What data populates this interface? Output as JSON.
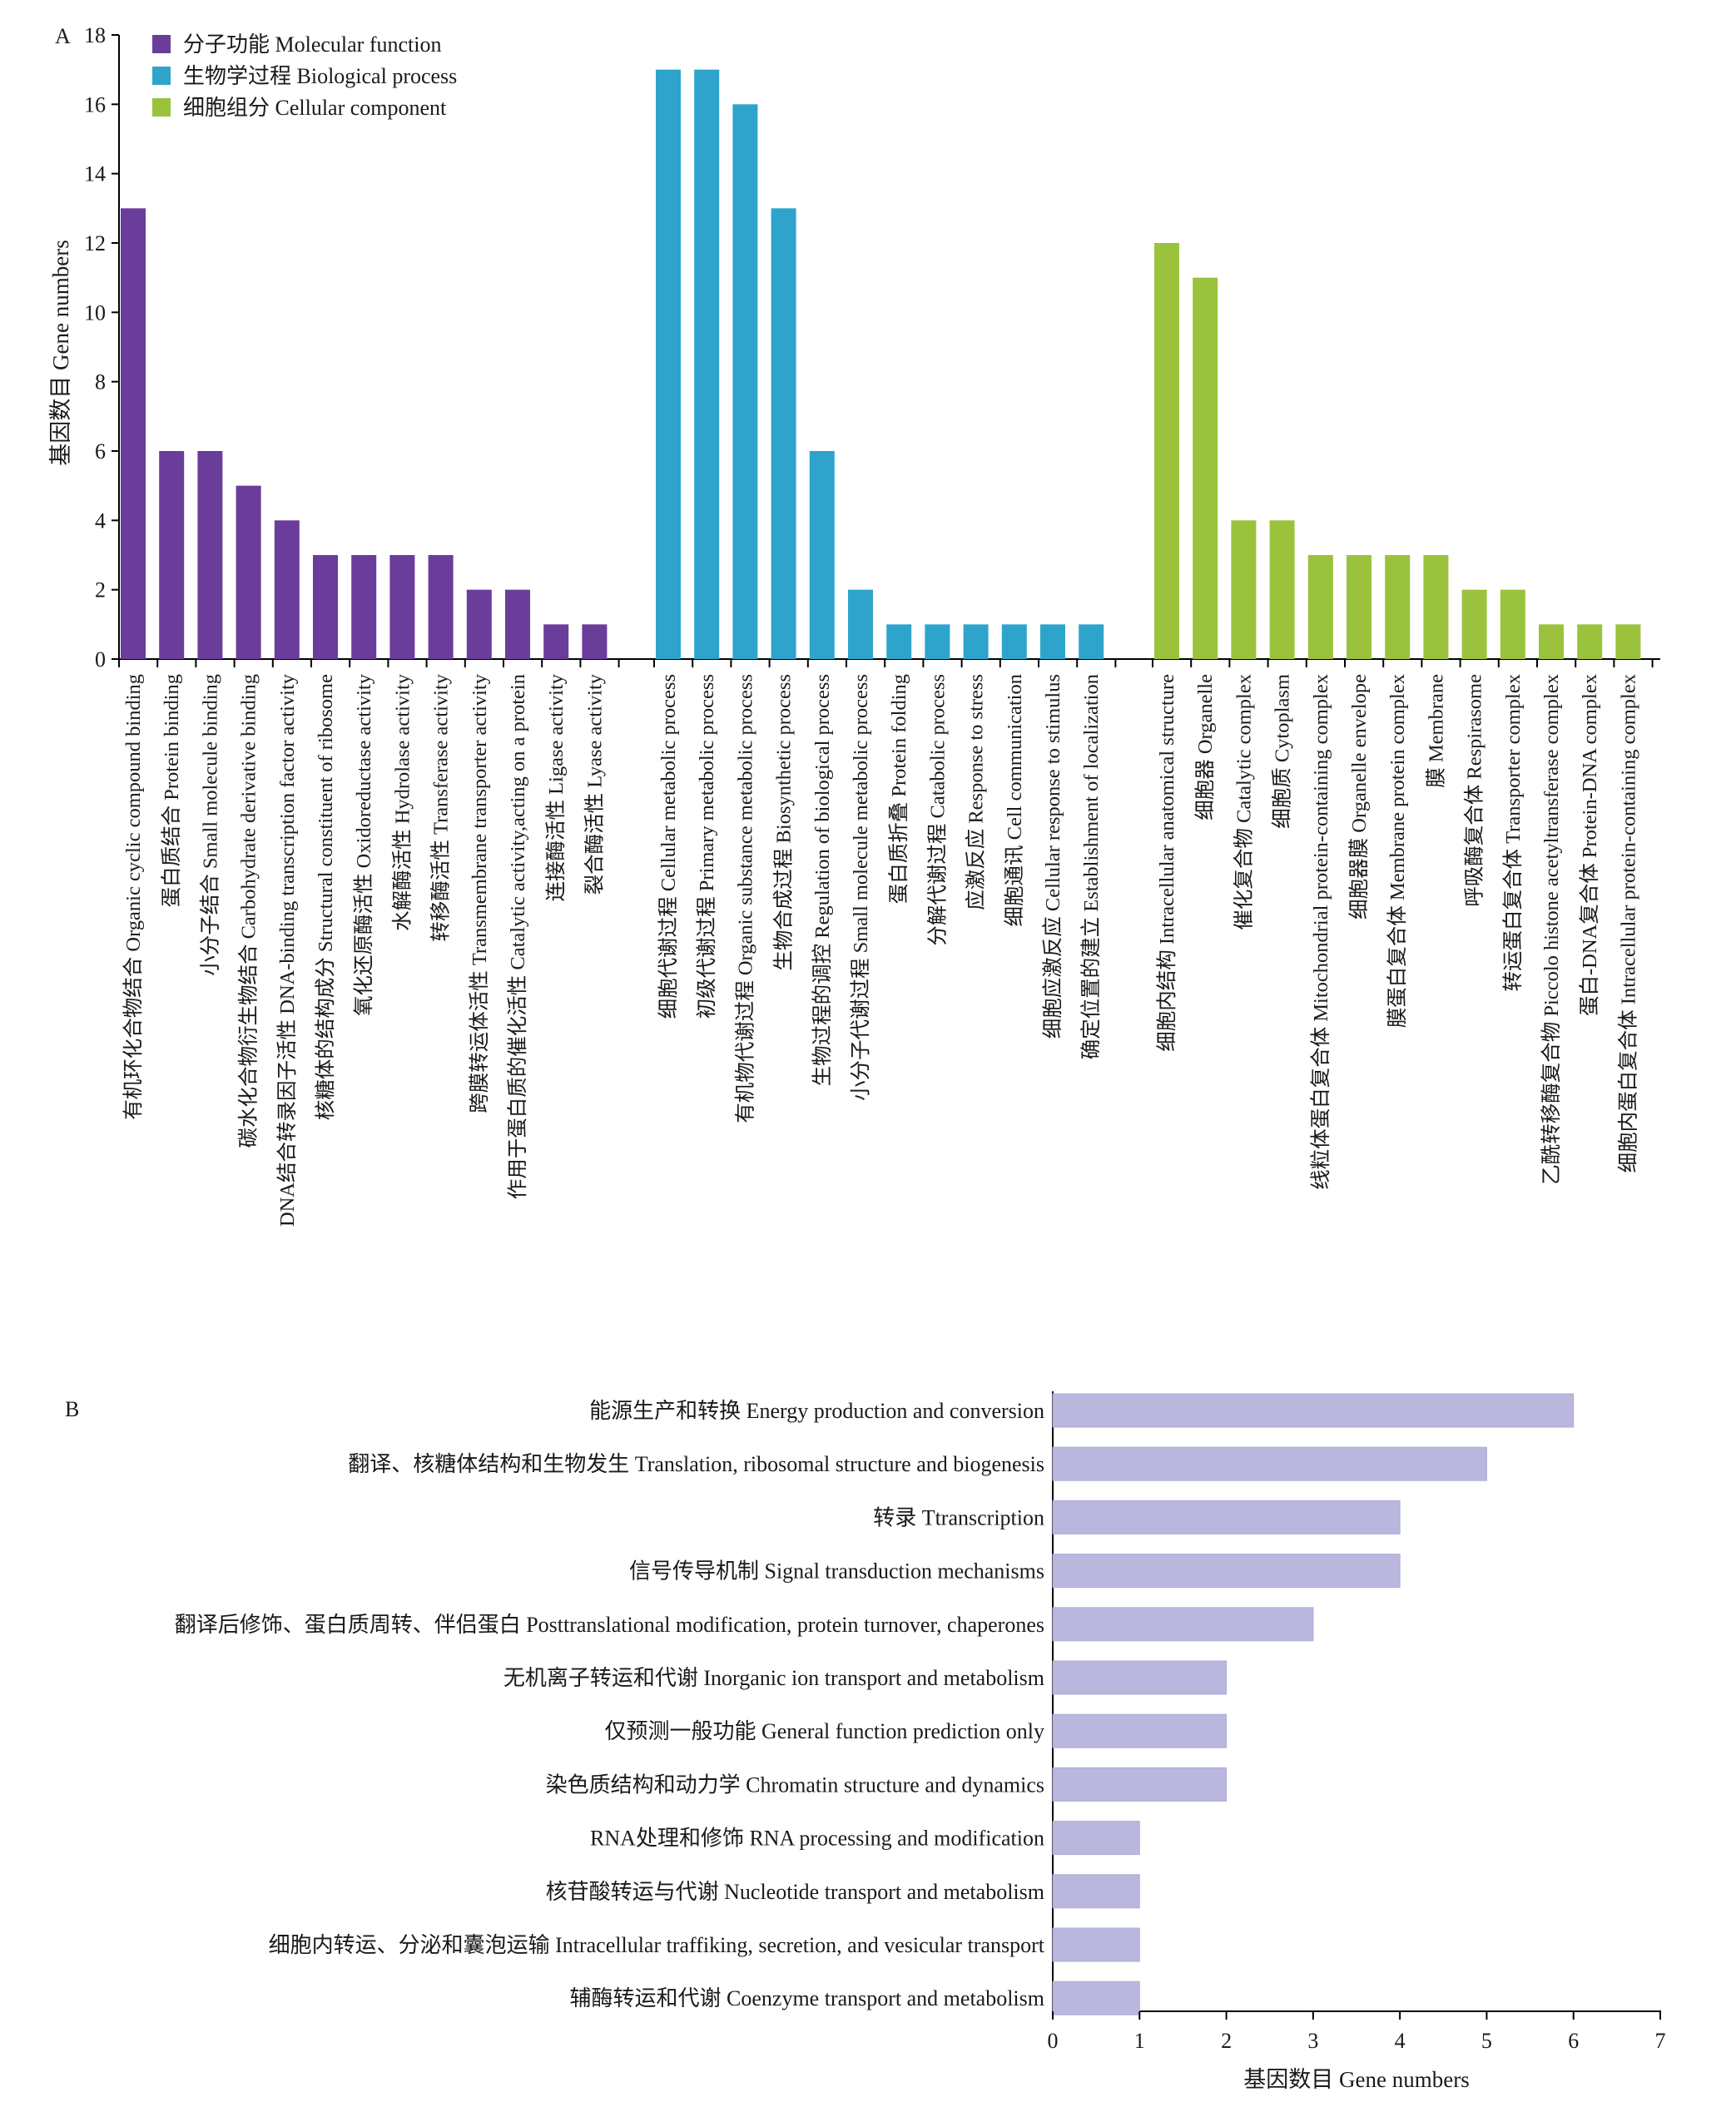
{
  "chart_data": [
    {
      "panel": "A",
      "type": "bar",
      "ylabel": "基因数目 Gene numbers",
      "ylim": [
        0,
        18
      ],
      "yticks": [
        "0",
        "2",
        "4",
        "6",
        "8",
        "10",
        "12",
        "14",
        "16",
        "18"
      ],
      "legend_position": "top-left",
      "groups": [
        {
          "name": "分子功能 Molecular function",
          "color": "#6a3d9a",
          "categories": [
            "有机环化合物结合 Organic cyclic compound binding",
            "蛋白质结合 Protein binding",
            "小分子结合 Small molecule binding",
            "碳水化合物衍生物结合 Carbohydrate derivative binding",
            "DNA结合转录因子活性 DNA-binding transcription factor activity",
            "核糖体的结构成分 Structural constituent of ribosome",
            "氧化还原酶活性 Oxidoreductase activity",
            "水解酶活性 Hydrolase activity",
            "转移酶活性 Transferase activity",
            "跨膜转运体活性 Transmembrane transporter activity",
            "作用于蛋白质的催化活性 Catalytic activity,acting on a protein",
            "连接酶活性 Ligase activity",
            "裂合酶活性 Lyase activity"
          ],
          "values": [
            13,
            6,
            6,
            5,
            4,
            3,
            3,
            3,
            3,
            2,
            2,
            1,
            1
          ]
        },
        {
          "name": "生物学过程 Biological process",
          "color": "#2ea4cc",
          "categories": [
            "细胞代谢过程 Cellular metabolic process",
            "初级代谢过程 Primary metabolic process",
            "有机物代谢过程 Organic substance metabolic process",
            "生物合成过程 Biosynthetic process",
            "生物过程的调控 Regulation of biological process",
            "小分子代谢过程 Small molecule metabolic process",
            "蛋白质折叠 Protein folding",
            "分解代谢过程 Catabolic process",
            "应激反应 Response to stress",
            "细胞通讯 Cell communication",
            "细胞应激反应 Cellular response to stimulus",
            "确定位置的建立 Establishment of localization"
          ],
          "values": [
            17,
            17,
            16,
            13,
            6,
            2,
            1,
            1,
            1,
            1,
            1,
            1
          ]
        },
        {
          "name": "细胞组分 Cellular component",
          "color": "#9bc23c",
          "categories": [
            "细胞内结构 Intracellular anatomical structure",
            "细胞器 Organelle",
            "催化复合物 Catalytic complex",
            "细胞质 Cytoplasm",
            "线粒体蛋白复合体 Mitochondrial protein-containing complex",
            "细胞器膜 Organelle envelope",
            "膜蛋白复合体 Membrane protein complex",
            "膜 Membrane",
            "呼吸酶复合体 Respirasome",
            "转运蛋白复合体 Transporter complex",
            "乙酰转移酶复合物 Piccolo histone acetyltransferase complex",
            "蛋白-DNA复合体 Protein-DNA complex",
            "细胞内蛋白复合体 Intracellular protein-containing complex"
          ],
          "values": [
            12,
            11,
            4,
            4,
            3,
            3,
            3,
            3,
            2,
            2,
            1,
            1,
            1
          ]
        }
      ]
    },
    {
      "panel": "B",
      "type": "bar",
      "orientation": "horizontal",
      "xlabel": "基因数目 Gene numbers",
      "xlim": [
        0,
        7
      ],
      "xticks": [
        "0",
        "1",
        "2",
        "3",
        "4",
        "5",
        "6",
        "7"
      ],
      "color": "#b9b7de",
      "categories": [
        "能源生产和转换 Energy production and conversion",
        "翻译、核糖体结构和生物发生 Translation, ribosomal structure and biogenesis",
        "转录 Ttranscription",
        "信号传导机制 Signal transduction mechanisms",
        "翻译后修饰、蛋白质周转、伴侣蛋白 Posttranslational modification, protein turnover, chaperones",
        "无机离子转运和代谢 Inorganic ion transport and metabolism",
        "仅预测一般功能 General function prediction only",
        "染色质结构和动力学 Chromatin structure and dynamics",
        "RNA处理和修饰 RNA processing and modification",
        "核苷酸转运与代谢 Nucleotide transport and metabolism",
        "细胞内转运、分泌和囊泡运输 Intracellular traffiking, secretion, and vesicular transport",
        "辅酶转运和代谢 Coenzyme transport and metabolism"
      ],
      "values": [
        6,
        5,
        4,
        4,
        3,
        2,
        2,
        2,
        1,
        1,
        1,
        1
      ]
    }
  ]
}
